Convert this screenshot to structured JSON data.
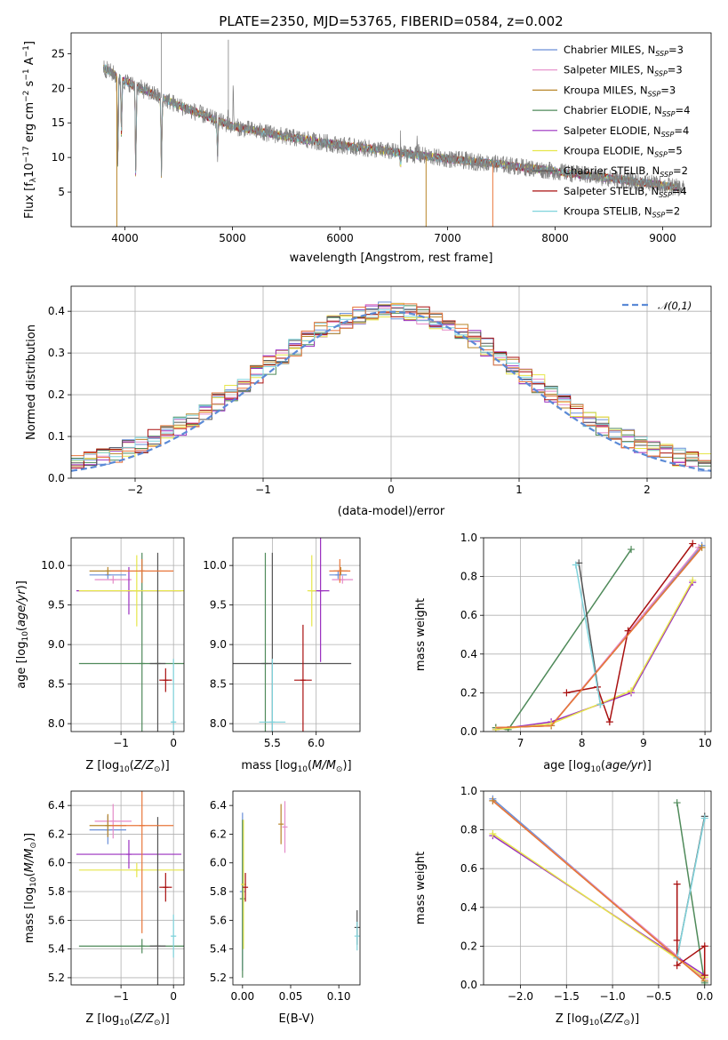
{
  "colors": {
    "Chabrier MILES": "#6a8fd8",
    "Salpeter MILES": "#e58ac8",
    "Kroupa MILES": "#b8862a",
    "Chabrier ELODIE": "#4f8a5a",
    "Salpeter ELODIE": "#9a2fbf",
    "Kroupa ELODIE": "#e6e64a",
    "Chabrier STELIB": "#555555",
    "Salpeter STELIB": "#a80f0f",
    "Kroupa STELIB": "#7fd3dc",
    "orange": "#e8763a",
    "gauss": "#5b8ad6"
  },
  "chart_data": [
    {
      "id": "spectrum",
      "type": "line",
      "title": "PLATE=2350, MJD=53765, FIBERID=0584, z=0.002",
      "xlabel": "wavelength [Angstrom, rest frame]",
      "ylabel": "Flux [f_λ10^-17 erg cm^-2 s^-1 A^-1]",
      "xlim": [
        3500,
        9450
      ],
      "ylim": [
        0,
        28
      ],
      "xticks": [
        4000,
        5000,
        6000,
        7000,
        8000,
        9000
      ],
      "yticks": [
        5,
        10,
        15,
        20,
        25
      ],
      "grid": false,
      "legend_position": "top-right",
      "legend": [
        {
          "name": "Chabrier MILES",
          "nssp": "3"
        },
        {
          "name": "Salpeter MILES",
          "nssp": "3"
        },
        {
          "name": "Kroupa MILES",
          "nssp": "3"
        },
        {
          "name": "Chabrier ELODIE",
          "nssp": "4"
        },
        {
          "name": "Salpeter ELODIE",
          "nssp": "4"
        },
        {
          "name": "Kroupa ELODIE",
          "nssp": "5"
        },
        {
          "name": "Chabrier STELIB",
          "nssp": "2"
        },
        {
          "name": "Salpeter STELIB",
          "nssp": "4"
        },
        {
          "name": "Kroupa STELIB",
          "nssp": "2"
        }
      ],
      "continuum": {
        "x": [
          3800,
          4000,
          4500,
          5000,
          5500,
          6000,
          6500,
          7000,
          7500,
          8000,
          8500,
          9000,
          9200
        ],
        "y": [
          23,
          21,
          17.5,
          14.5,
          13,
          11.8,
          10.8,
          9.8,
          9,
          8,
          7,
          6,
          5.5
        ]
      }
    },
    {
      "id": "residuals",
      "type": "line",
      "xlabel": "(data-model)/error",
      "ylabel": "Normed distribution",
      "xlim": [
        -2.5,
        2.5
      ],
      "ylim": [
        0,
        0.46
      ],
      "xticks": [
        -2,
        -1,
        0,
        1,
        2
      ],
      "yticks": [
        0.0,
        0.1,
        0.2,
        0.3,
        0.4
      ],
      "grid": true,
      "legend_position": "top-right",
      "legend": [
        {
          "name": "N(0,1)"
        }
      ],
      "bin_width": 0.1
    },
    {
      "id": "age-vs-Z",
      "type": "scatter",
      "xlabel": "Z [log10(Z/Z☉)]",
      "ylabel": "age [log10(age/yr)]",
      "xlim": [
        -1.95,
        0.2
      ],
      "ylim": [
        7.9,
        10.35
      ],
      "xticks": [
        -1,
        0
      ],
      "yticks": [
        8.0,
        8.5,
        9.0,
        9.5,
        10.0
      ],
      "grid": true,
      "points": [
        {
          "series": "Chabrier MILES",
          "x": -1.25,
          "y": 9.88,
          "xerr": 0.35,
          "yerr": 0.05
        },
        {
          "series": "Salpeter MILES",
          "x": -1.15,
          "y": 9.82,
          "xerr": 0.35,
          "yerr": 0.05
        },
        {
          "series": "Kroupa MILES",
          "x": -1.25,
          "y": 9.93,
          "xerr": 0.35,
          "yerr": 0.05
        },
        {
          "series": "Chabrier ELODIE",
          "x": -0.6,
          "y": 8.76,
          "xerr": 1.2,
          "yerr": 1.4
        },
        {
          "series": "Salpeter ELODIE",
          "x": -0.85,
          "y": 9.68,
          "xerr": 1.0,
          "yerr": 0.3
        },
        {
          "series": "Kroupa ELODIE",
          "x": -0.7,
          "y": 9.68,
          "xerr": 1.1,
          "yerr": 0.45
        },
        {
          "series": "Chabrier STELIB",
          "x": -0.3,
          "y": 8.76,
          "xerr": 0.15,
          "yerr": 1.4
        },
        {
          "series": "Salpeter STELIB",
          "x": -0.15,
          "y": 8.55,
          "xerr": 0.12,
          "yerr": 0.15
        },
        {
          "series": "Kroupa STELIB",
          "x": 0.0,
          "y": 8.02,
          "xerr": 0.05,
          "yerr": 0.8
        },
        {
          "series": "orange",
          "x": -0.6,
          "y": 9.93,
          "xerr": 0.6,
          "yerr": 0.15
        }
      ]
    },
    {
      "id": "age-vs-mass",
      "type": "scatter",
      "xlabel": "mass [log10(M/M☉)]",
      "ylabel": "",
      "xlim": [
        5.05,
        6.5
      ],
      "ylim": [
        7.9,
        10.35
      ],
      "xticks": [
        5.5,
        6.0
      ],
      "yticks": [
        8.0,
        8.5,
        9.0,
        9.5,
        10.0
      ],
      "grid": true,
      "points": [
        {
          "series": "Chabrier MILES",
          "x": 6.25,
          "y": 9.88,
          "xerr": 0.1,
          "yerr": 0.05
        },
        {
          "series": "Salpeter MILES",
          "x": 6.3,
          "y": 9.82,
          "xerr": 0.12,
          "yerr": 0.05
        },
        {
          "series": "Kroupa MILES",
          "x": 6.28,
          "y": 9.93,
          "xerr": 0.08,
          "yerr": 0.05
        },
        {
          "series": "Chabrier ELODIE",
          "x": 5.42,
          "y": 8.76,
          "xerr": 0.05,
          "yerr": 1.4
        },
        {
          "series": "Salpeter ELODIE",
          "x": 6.05,
          "y": 9.68,
          "xerr": 0.1,
          "yerr": 0.9
        },
        {
          "series": "Kroupa ELODIE",
          "x": 5.95,
          "y": 9.68,
          "xerr": 0.05,
          "yerr": 0.45
        },
        {
          "series": "Chabrier STELIB",
          "x": 5.5,
          "y": 8.76,
          "xerr": 0.9,
          "yerr": 1.4
        },
        {
          "series": "Salpeter STELIB",
          "x": 5.85,
          "y": 8.55,
          "xerr": 0.1,
          "yerr": 0.7
        },
        {
          "series": "Kroupa STELIB",
          "x": 5.5,
          "y": 8.02,
          "xerr": 0.15,
          "yerr": 0.8
        },
        {
          "series": "orange",
          "x": 6.27,
          "y": 9.93,
          "xerr": 0.12,
          "yerr": 0.15
        }
      ]
    },
    {
      "id": "weight-vs-age",
      "type": "line",
      "xlabel": "age [log10(age/yr)]",
      "ylabel": "mass weight",
      "xlim": [
        6.4,
        10.1
      ],
      "ylim": [
        0,
        1
      ],
      "xticks": [
        7,
        8,
        9,
        10
      ],
      "yticks": [
        0.0,
        0.2,
        0.4,
        0.6,
        0.8,
        1.0
      ],
      "grid": true,
      "series": [
        {
          "name": "Chabrier MILES",
          "points": [
            [
              6.6,
              0.02
            ],
            [
              7.5,
              0.03
            ],
            [
              9.95,
              0.96
            ]
          ]
        },
        {
          "name": "Salpeter MILES",
          "points": [
            [
              6.6,
              0.02
            ],
            [
              7.5,
              0.03
            ],
            [
              9.9,
              0.95
            ]
          ]
        },
        {
          "name": "Kroupa MILES",
          "points": [
            [
              6.6,
              0.02
            ],
            [
              7.5,
              0.03
            ],
            [
              9.95,
              0.95
            ]
          ]
        },
        {
          "name": "Chabrier ELODIE",
          "points": [
            [
              6.6,
              0.02
            ],
            [
              6.8,
              0.01
            ],
            [
              8.8,
              0.94
            ]
          ]
        },
        {
          "name": "Salpeter ELODIE",
          "points": [
            [
              6.6,
              0.01
            ],
            [
              7.5,
              0.05
            ],
            [
              8.8,
              0.2
            ],
            [
              9.8,
              0.77
            ]
          ]
        },
        {
          "name": "Kroupa ELODIE",
          "points": [
            [
              6.6,
              0.01
            ],
            [
              7.5,
              0.04
            ],
            [
              8.8,
              0.21
            ],
            [
              9.8,
              0.78
            ]
          ]
        },
        {
          "name": "Chabrier STELIB",
          "points": [
            [
              7.95,
              0.87
            ],
            [
              8.3,
              0.14
            ]
          ]
        },
        {
          "name": "Salpeter STELIB",
          "points": [
            [
              7.75,
              0.2
            ],
            [
              8.25,
              0.23
            ],
            [
              8.45,
              0.05
            ],
            [
              8.75,
              0.52
            ],
            [
              9.8,
              0.97
            ]
          ]
        },
        {
          "name": "Kroupa STELIB",
          "points": [
            [
              7.9,
              0.86
            ],
            [
              8.3,
              0.14
            ]
          ]
        }
      ]
    },
    {
      "id": "mass-vs-Z",
      "type": "scatter",
      "xlabel": "Z [log10(Z/Z☉)]",
      "ylabel": "mass [log10(M/M☉)]",
      "xlim": [
        -1.95,
        0.2
      ],
      "ylim": [
        5.15,
        6.5
      ],
      "xticks": [
        -1,
        0
      ],
      "yticks": [
        5.2,
        5.4,
        5.6,
        5.8,
        6.0,
        6.2,
        6.4
      ],
      "grid": true,
      "points": [
        {
          "series": "Chabrier MILES",
          "x": -1.25,
          "y": 6.23,
          "xerr": 0.35,
          "yerr": 0.1
        },
        {
          "series": "Salpeter MILES",
          "x": -1.15,
          "y": 6.29,
          "xerr": 0.35,
          "yerr": 0.12
        },
        {
          "series": "Kroupa MILES",
          "x": -1.25,
          "y": 6.26,
          "xerr": 0.35,
          "yerr": 0.08
        },
        {
          "series": "Chabrier ELODIE",
          "x": -0.6,
          "y": 5.42,
          "xerr": 1.2,
          "yerr": 0.05
        },
        {
          "series": "Salpeter ELODIE",
          "x": -0.85,
          "y": 6.06,
          "xerr": 1.0,
          "yerr": 0.1
        },
        {
          "series": "Kroupa ELODIE",
          "x": -0.7,
          "y": 5.95,
          "xerr": 1.1,
          "yerr": 0.05
        },
        {
          "series": "Chabrier STELIB",
          "x": -0.3,
          "y": 5.42,
          "xerr": 0.15,
          "yerr": 0.9
        },
        {
          "series": "Salpeter STELIB",
          "x": -0.15,
          "y": 5.83,
          "xerr": 0.12,
          "yerr": 0.1
        },
        {
          "series": "Kroupa STELIB",
          "x": 0.0,
          "y": 5.49,
          "xerr": 0.05,
          "yerr": 0.15
        },
        {
          "series": "orange",
          "x": -0.6,
          "y": 6.26,
          "xerr": 0.6,
          "yerr": 0.75
        }
      ]
    },
    {
      "id": "mass-vs-EBV",
      "type": "scatter",
      "xlabel": "E(B-V)",
      "ylabel": "",
      "xlim": [
        -0.01,
        0.122
      ],
      "ylim": [
        5.15,
        6.5
      ],
      "xticks": [
        0.0,
        0.05,
        0.1
      ],
      "yticks": [
        5.2,
        5.4,
        5.6,
        5.8,
        6.0,
        6.2,
        6.4
      ],
      "grid": false,
      "points": [
        {
          "series": "Chabrier MILES",
          "x": 0.0,
          "y": 5.8,
          "xerr": 0,
          "yerr": 0.55
        },
        {
          "series": "Salpeter MILES",
          "x": 0.044,
          "y": 6.25,
          "xerr": 0,
          "yerr": 0.18
        },
        {
          "series": "Kroupa MILES",
          "x": 0.04,
          "y": 6.27,
          "xerr": 0,
          "yerr": 0.14
        },
        {
          "series": "Chabrier ELODIE",
          "x": 0.0,
          "y": 5.75,
          "xerr": 0,
          "yerr": 0.55
        },
        {
          "series": "Kroupa ELODIE",
          "x": 0.001,
          "y": 5.85,
          "xerr": 0,
          "yerr": 0.45
        },
        {
          "series": "Salpeter STELIB",
          "x": 0.003,
          "y": 5.83,
          "xerr": 0,
          "yerr": 0.1
        },
        {
          "series": "Chabrier STELIB",
          "x": 0.119,
          "y": 5.55,
          "xerr": 0,
          "yerr": 0.12
        },
        {
          "series": "Kroupa STELIB",
          "x": 0.119,
          "y": 5.49,
          "xerr": 0,
          "yerr": 0.1
        }
      ]
    },
    {
      "id": "weight-vs-Z",
      "type": "line",
      "xlabel": "Z [log10(Z/Z☉)]",
      "ylabel": "mass weight",
      "xlim": [
        -2.4,
        0.07
      ],
      "ylim": [
        0,
        1
      ],
      "xticks": [
        -2.0,
        -1.5,
        -1.0,
        -0.5,
        0.0
      ],
      "yticks": [
        0.0,
        0.2,
        0.4,
        0.6,
        0.8,
        1.0
      ],
      "grid": true,
      "series": [
        {
          "name": "Chabrier MILES",
          "points": [
            [
              -2.3,
              0.96
            ],
            [
              0.0,
              0.02
            ]
          ]
        },
        {
          "name": "Salpeter MILES",
          "points": [
            [
              -2.3,
              0.95
            ],
            [
              0.0,
              0.03
            ]
          ]
        },
        {
          "name": "Kroupa MILES",
          "points": [
            [
              -2.3,
              0.95
            ],
            [
              0.0,
              0.02
            ]
          ]
        },
        {
          "name": "Chabrier ELODIE",
          "points": [
            [
              -0.3,
              0.94
            ],
            [
              0.0,
              0.01
            ]
          ]
        },
        {
          "name": "Salpeter ELODIE",
          "points": [
            [
              -2.3,
              0.77
            ],
            [
              0.0,
              0.05
            ]
          ]
        },
        {
          "name": "Kroupa ELODIE",
          "points": [
            [
              -2.3,
              0.78
            ],
            [
              0.0,
              0.04
            ]
          ]
        },
        {
          "name": "Chabrier STELIB",
          "points": [
            [
              -0.3,
              0.14
            ],
            [
              0.0,
              0.87
            ]
          ]
        },
        {
          "name": "Salpeter STELIB",
          "points": [
            [
              -0.3,
              0.52
            ],
            [
              -0.3,
              0.23
            ],
            [
              -0.3,
              0.1
            ],
            [
              0.0,
              0.2
            ],
            [
              0.0,
              0.05
            ]
          ]
        },
        {
          "name": "Kroupa STELIB",
          "points": [
            [
              -0.3,
              0.14
            ],
            [
              0.0,
              0.86
            ]
          ]
        }
      ]
    }
  ]
}
